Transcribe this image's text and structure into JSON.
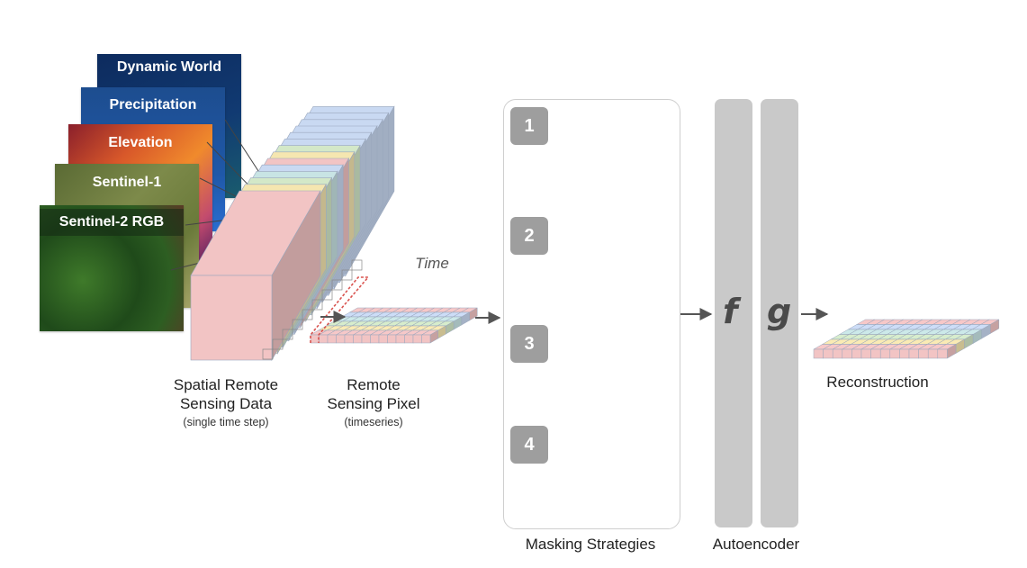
{
  "input_layers": [
    {
      "title": "Dynamic World",
      "color": "#0d2b5e"
    },
    {
      "title": "Precipitation",
      "color": "#1d4d8f"
    },
    {
      "title": "Elevation",
      "color": "#c2412a"
    },
    {
      "title": "Sentinel-1",
      "color": "#6b7a3e"
    },
    {
      "title": "Sentinel-2 RGB",
      "color": "#2f5f2a"
    }
  ],
  "labels": {
    "spatial_main": "Spatial Remote\nSensing Data",
    "spatial_sub": "(single time step)",
    "pixel_main": "Remote\nSensing Pixel",
    "pixel_sub": "(timeseries)",
    "time": "Time",
    "masking": "Masking Strategies",
    "autoencoder": "Autoencoder",
    "reconstruction": "Reconstruction"
  },
  "strategies": [
    "1",
    "2",
    "3",
    "4"
  ],
  "autoencoder": {
    "encoder": "f",
    "decoder": "g"
  },
  "colors": {
    "band_red": "#f2c4c4",
    "band_yellow": "#f5e6b0",
    "band_green": "#d3e8c8",
    "band_teal": "#c8e4e4",
    "band_blue": "#c9d9f2",
    "box_gray": "#c9c9c9",
    "badge_gray": "#9e9e9e"
  }
}
